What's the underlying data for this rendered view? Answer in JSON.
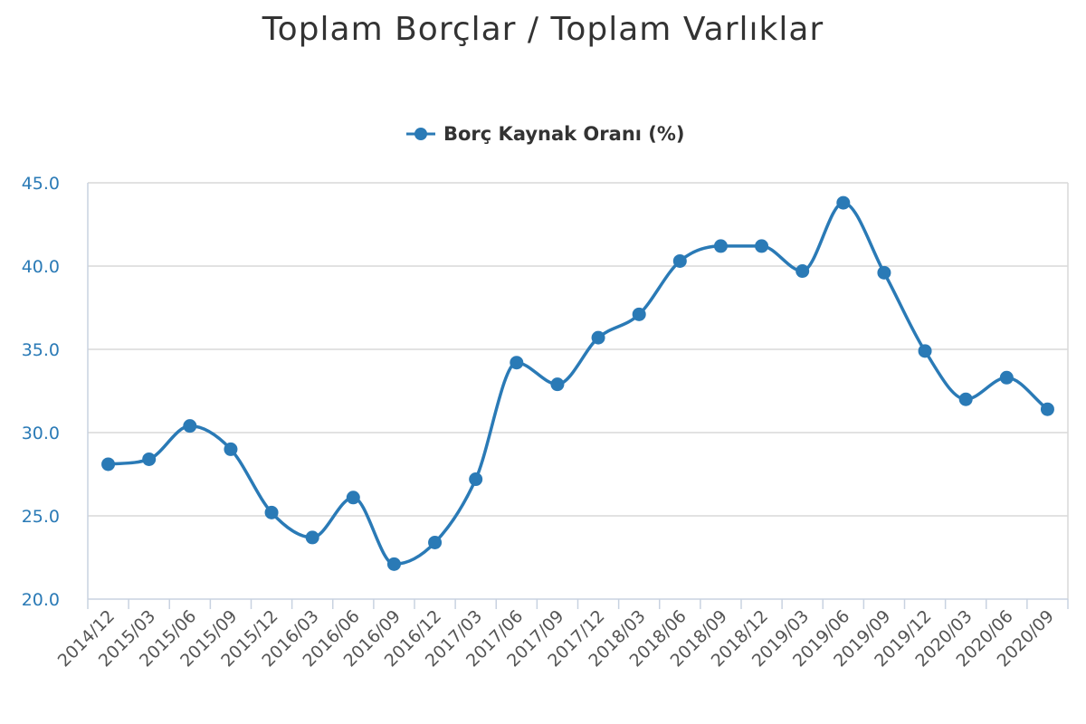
{
  "chart_data": {
    "type": "line",
    "title": "Toplam Borçlar / Toplam Varlıklar",
    "series": [
      {
        "name": "Borç Kaynak Oranı (%)",
        "color": "#2a7ab6",
        "values": [
          28.1,
          28.4,
          30.4,
          29.0,
          25.2,
          23.7,
          26.1,
          22.1,
          23.4,
          27.2,
          34.2,
          32.9,
          35.7,
          37.1,
          40.3,
          41.2,
          41.2,
          39.7,
          43.8,
          39.6,
          34.9,
          32.0,
          33.3,
          31.4
        ]
      }
    ],
    "categories": [
      "2014/12",
      "2015/03",
      "2015/06",
      "2015/09",
      "2015/12",
      "2016/03",
      "2016/06",
      "2016/09",
      "2016/12",
      "2017/03",
      "2017/06",
      "2017/09",
      "2017/12",
      "2018/03",
      "2018/06",
      "2018/09",
      "2018/12",
      "2019/03",
      "2019/06",
      "2019/09",
      "2019/12",
      "2020/03",
      "2020/06",
      "2020/09"
    ],
    "ylim": [
      20,
      45
    ],
    "yticks": [
      "20.0",
      "25.0",
      "30.0",
      "35.0",
      "40.0",
      "45.0"
    ],
    "grid": true,
    "legend_position": "top-center"
  }
}
